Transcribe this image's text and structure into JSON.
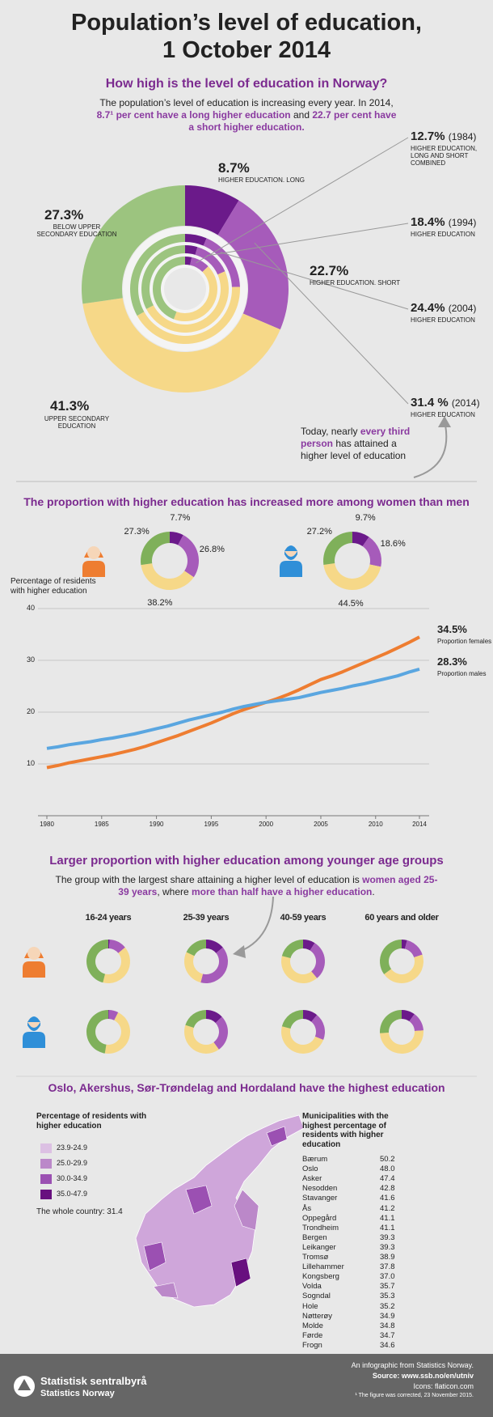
{
  "title": [
    "Population’s level of education,",
    "1 October 2014"
  ],
  "overview": {
    "heading": "How high is the level of education in Norway?",
    "intro": [
      {
        "text": "The population’s level of education is increasing every year. In 2014, ",
        "emphasis": false
      },
      {
        "text": "8.7¹ per cent have a long higher education",
        "emphasis": true
      },
      {
        "text": " and ",
        "emphasis": false
      },
      {
        "text": "22.7 per cent have a short higher education.",
        "emphasis": true
      }
    ],
    "callout": [
      {
        "text": "Today, nearly ",
        "emphasis": false
      },
      {
        "text": "every third person",
        "emphasis": true
      },
      {
        "text": " has attained a higher level of education",
        "emphasis": false
      }
    ]
  },
  "gender": {
    "heading": "The proportion with higher education has increased more among women than men"
  },
  "age": {
    "heading": "Larger proportion with higher education among younger age groups",
    "intro": [
      {
        "text": "The group with the largest share attaining a higher level of education is ",
        "emphasis": false
      },
      {
        "text": "women aged 25-39 years",
        "emphasis": true
      },
      {
        "text": ", where ",
        "emphasis": false
      },
      {
        "text": "more than half have a higher education",
        "emphasis": true
      },
      {
        "text": ".",
        "emphasis": false
      }
    ]
  },
  "regions": {
    "heading": "Oslo, Akershus, Sør-Trøndelag and Hordaland have the highest education",
    "legend_title": "Percentage of residents with higher education",
    "bins": [
      {
        "label": "23.9-24.9",
        "color": "#dcc0e3"
      },
      {
        "label": "25.0-29.9",
        "color": "#bb88c9"
      },
      {
        "label": "30.0-34.9",
        "color": "#9b50b2"
      },
      {
        "label": "35.0-47.9",
        "color": "#68107f"
      }
    ],
    "country_note": "The whole country: 31.4",
    "table_title": "Municipalities with the highest percentage of residents with higher education",
    "municipalities": [
      [
        "Bærum",
        "50.2"
      ],
      [
        "Oslo",
        "48.0"
      ],
      [
        "Asker",
        "47.4"
      ],
      [
        "Nesodden",
        "42.8"
      ],
      [
        "Stavanger",
        "41.6"
      ],
      [
        "Ås",
        "41.2"
      ],
      [
        "Oppegård",
        "41.1"
      ],
      [
        "Trondheim",
        "41.1"
      ],
      [
        "Bergen",
        "39.3"
      ],
      [
        "Leikanger",
        "39.3"
      ],
      [
        "Tromsø",
        "38.9"
      ],
      [
        "Lillehammer",
        "37.8"
      ],
      [
        "Kongsberg",
        "37.0"
      ],
      [
        "Volda",
        "35.7"
      ],
      [
        "Sogndal",
        "35.3"
      ],
      [
        "Hole",
        "35.2"
      ],
      [
        "Nøtterøy",
        "34.9"
      ],
      [
        "Molde",
        "34.8"
      ],
      [
        "Førde",
        "34.7"
      ],
      [
        "Frogn",
        "34.6"
      ]
    ]
  },
  "footer": {
    "lines": [
      "An infographic from Statistics Norway.",
      "Source: www.ssb.no/en/utniv",
      "Icons: flaticon.com",
      "¹ The figure was corrected, 23 November 2015."
    ],
    "logo": [
      "Statistisk sentralbyrå",
      "Statistics Norway"
    ]
  },
  "chart_data": [
    {
      "type": "donut-rings",
      "categories": [
        "HIGHER EDUCATION. LONG",
        "HIGHER EDUCATION. SHORT",
        "UPPER SECONDARY EDUCATION",
        "BELOW UPPER SECONDARY EDUCATION"
      ],
      "colors": [
        "#6b1a8a",
        "#a65bba",
        "#f6d888",
        "#9cc47f"
      ],
      "series": [
        {
          "values": [
            3.3,
            9.4,
            43.0,
            44.3
          ]
        },
        {
          "values": [
            4.6,
            13.8,
            49.0,
            32.6
          ]
        },
        {
          "values": [
            6.4,
            18.0,
            42.5,
            33.1
          ]
        },
        {
          "values": [
            8.7,
            22.7,
            41.3,
            27.3
          ],
          "value_labels": [
            "8.7%",
            "22.7%",
            "41.3%",
            "27.3%"
          ]
        }
      ],
      "ring_labels": [
        {
          "value_label": "12.7%",
          "year": "(1984)",
          "caption": "HIGHER EDUCATION, LONG AND SHORT COMBINED"
        },
        {
          "value_label": "18.4%",
          "year": "(1994)",
          "caption": "HIGHER EDUCATION"
        },
        {
          "value_label": "24.4%",
          "year": "(2004)",
          "caption": "HIGHER EDUCATION"
        },
        {
          "value_label": "31.4 %",
          "year": "(2014)",
          "caption": "HIGHER EDUCATION"
        }
      ]
    },
    {
      "type": "donut",
      "colors": [
        "#6b1a8a",
        "#a65bba",
        "#f6d888",
        "#7fb05a"
      ],
      "values": [
        7.7,
        26.8,
        38.2,
        27.3
      ],
      "value_labels": [
        "7.7%",
        "26.8%",
        "38.2%",
        "27.3%"
      ]
    },
    {
      "type": "donut",
      "colors": [
        "#6b1a8a",
        "#a65bba",
        "#f6d888",
        "#7fb05a"
      ],
      "values": [
        9.7,
        18.6,
        44.5,
        27.2
      ],
      "value_labels": [
        "9.7%",
        "18.6%",
        "44.5%",
        "27.2%"
      ]
    },
    {
      "type": "line",
      "y_label": "Percentage of residents with higher education",
      "x": [
        1980,
        1981,
        1982,
        1983,
        1984,
        1985,
        1986,
        1987,
        1988,
        1989,
        1990,
        1991,
        1992,
        1993,
        1994,
        1995,
        1996,
        1997,
        1998,
        1999,
        2000,
        2001,
        2002,
        2003,
        2004,
        2005,
        2006,
        2007,
        2008,
        2009,
        2010,
        2011,
        2012,
        2013,
        2014
      ],
      "xlim": [
        1980,
        2014
      ],
      "xticks": [
        1980,
        1985,
        1990,
        1995,
        2000,
        2005,
        2010,
        2014
      ],
      "ylim": [
        0,
        40
      ],
      "yticks": [
        10,
        20,
        30,
        40
      ],
      "grid": true,
      "series": [
        {
          "name": "Proportion females",
          "color": "#ee7d31",
          "values": [
            9.3,
            9.7,
            10.2,
            10.6,
            11.0,
            11.4,
            11.8,
            12.3,
            12.8,
            13.4,
            14.1,
            14.8,
            15.5,
            16.3,
            17.1,
            17.9,
            18.8,
            19.7,
            20.5,
            21.2,
            21.9,
            22.6,
            23.4,
            24.3,
            25.3,
            26.3,
            27.0,
            27.8,
            28.7,
            29.6,
            30.5,
            31.4,
            32.4,
            33.4,
            34.5
          ],
          "value_labels": [
            null,
            null,
            null,
            null,
            null,
            null,
            null,
            null,
            null,
            null,
            null,
            null,
            null,
            null,
            null,
            null,
            null,
            null,
            null,
            null,
            null,
            null,
            null,
            null,
            null,
            null,
            null,
            null,
            null,
            null,
            null,
            null,
            null,
            null,
            "34.5%"
          ]
        },
        {
          "name": "Proportion males",
          "color": "#5aa6e0",
          "values": [
            13.0,
            13.3,
            13.7,
            14.0,
            14.3,
            14.7,
            15.0,
            15.4,
            15.8,
            16.3,
            16.8,
            17.3,
            17.9,
            18.5,
            19.0,
            19.5,
            20.0,
            20.6,
            21.1,
            21.5,
            21.9,
            22.2,
            22.5,
            22.8,
            23.3,
            23.8,
            24.2,
            24.6,
            25.1,
            25.5,
            26.0,
            26.5,
            27.0,
            27.7,
            28.3
          ],
          "value_labels": [
            null,
            null,
            null,
            null,
            null,
            null,
            null,
            null,
            null,
            null,
            null,
            null,
            null,
            null,
            null,
            null,
            null,
            null,
            null,
            null,
            null,
            null,
            null,
            null,
            null,
            null,
            null,
            null,
            null,
            null,
            null,
            null,
            null,
            null,
            "28.3%"
          ]
        }
      ]
    },
    {
      "type": "donut-grid",
      "categories": [
        "16-24 years",
        "25-39 years",
        "40-59 years",
        "60 years and older"
      ],
      "colors": [
        "#6b1a8a",
        "#a65bba",
        "#f6d888",
        "#7fb05a"
      ],
      "series": [
        {
          "values": [
            [
              1.0,
              13.0,
              40.0,
              46.0
            ],
            [
              14.0,
              40.0,
              28.0,
              18.0
            ],
            [
              9.0,
              30.0,
              40.0,
              21.0
            ],
            [
              4.0,
              16.0,
              45.0,
              35.0
            ]
          ]
        },
        {
          "values": [
            [
              0.5,
              7.0,
              45.0,
              47.5
            ],
            [
              13.0,
              27.0,
              40.0,
              20.0
            ],
            [
              11.0,
              20.0,
              48.0,
              21.0
            ],
            [
              10.0,
              14.0,
              50.0,
              26.0
            ]
          ]
        }
      ]
    }
  ]
}
